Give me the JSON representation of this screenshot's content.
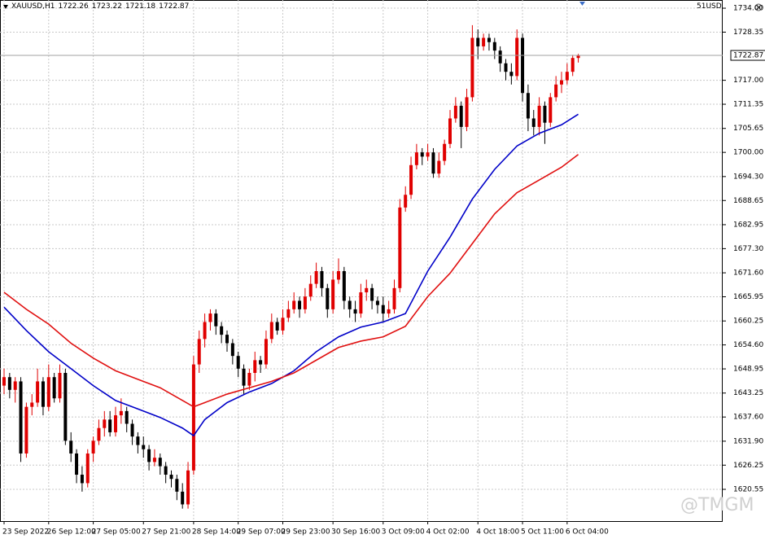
{
  "chart_data": {
    "type": "candlestick",
    "title": "XAUUSD,H1",
    "account": "51USD",
    "watermark": "@TMGM",
    "categories": [
      "23 Sep 2022",
      null,
      null,
      null,
      null,
      null,
      null,
      null,
      "26 Sep 12:00",
      null,
      null,
      null,
      null,
      null,
      null,
      null,
      "27 Sep 05:00",
      null,
      null,
      null,
      null,
      null,
      null,
      null,
      null,
      "27 Sep 21:00",
      null,
      null,
      null,
      null,
      null,
      null,
      null,
      null,
      "28 Sep 14:00",
      null,
      null,
      null,
      null,
      null,
      null,
      null,
      "29 Sep 07:00",
      null,
      null,
      null,
      null,
      null,
      null,
      null,
      "29 Sep 23:00",
      null,
      null,
      null,
      null,
      null,
      null,
      null,
      null,
      "30 Sep 16:00",
      null,
      null,
      null,
      null,
      null,
      null,
      null,
      null,
      "3 Oct 09:00",
      null,
      null,
      null,
      null,
      null,
      null,
      null,
      "4 Oct 02:00",
      null,
      null,
      null,
      null,
      null,
      null,
      null,
      null,
      "4 Oct 18:00",
      null,
      null,
      null,
      null,
      null,
      null,
      null,
      "5 Oct 11:00",
      null,
      null,
      null,
      null,
      null,
      null,
      null,
      "6 Oct 04:00",
      null,
      null
    ],
    "open": [
      1645,
      1647,
      1644,
      1646,
      1629,
      1640,
      1641,
      1646,
      1640,
      1647,
      1642,
      1648,
      1632,
      1629,
      1624,
      1622,
      1629,
      1632,
      1635,
      1637,
      1634,
      1638,
      1639,
      1636,
      1633,
      1631,
      1630,
      1627,
      1628,
      1626,
      1624,
      1623,
      1620,
      1617,
      1625,
      1650,
      1656,
      1660,
      1662,
      1659,
      1657,
      1655,
      1652,
      1649,
      1645,
      1648,
      1651,
      1650,
      1656,
      1660,
      1658,
      1661,
      1663,
      1665,
      1663,
      1666,
      1669,
      1672,
      1668,
      1663,
      1670,
      1672,
      1665,
      1663,
      1662,
      1667,
      1668,
      1665,
      1664,
      1662,
      1663,
      1668,
      1687,
      1690,
      1697,
      1700,
      1699,
      1700,
      1695,
      1698,
      1702,
      1708,
      1711,
      1706,
      1713,
      1727,
      1725,
      1727,
      1726,
      1724,
      1721,
      1719,
      1718,
      1727,
      1714,
      1708,
      1706,
      1711,
      1707,
      1713,
      1716,
      1717,
      1719,
      1722.26
    ],
    "high": [
      1649,
      1648,
      1647,
      1647,
      1641,
      1643,
      1649,
      1647,
      1650,
      1648,
      1650,
      1649,
      1634,
      1630,
      1626,
      1630,
      1633,
      1637,
      1639,
      1639,
      1640,
      1642,
      1640,
      1637,
      1634,
      1633,
      1631,
      1630,
      1629,
      1627,
      1625,
      1624,
      1622,
      1627,
      1652,
      1658,
      1662,
      1663,
      1663,
      1660,
      1658,
      1656,
      1653,
      1650,
      1649,
      1653,
      1652,
      1658,
      1662,
      1661,
      1663,
      1665,
      1667,
      1666,
      1668,
      1671,
      1674,
      1673,
      1669,
      1672,
      1675,
      1673,
      1666,
      1665,
      1669,
      1670,
      1669,
      1666,
      1666,
      1665,
      1670,
      1689,
      1692,
      1699,
      1702,
      1701,
      1702,
      1701,
      1700,
      1703,
      1710,
      1713,
      1712,
      1715,
      1730,
      1729,
      1728,
      1728,
      1727,
      1725,
      1722,
      1721,
      1729,
      1728,
      1716,
      1710,
      1713,
      1712,
      1714,
      1718,
      1719,
      1721,
      1723,
      1723.22
    ],
    "low": [
      1643,
      1642,
      1641,
      1627,
      1628,
      1638,
      1640,
      1638,
      1639,
      1641,
      1641,
      1631,
      1627,
      1622,
      1620,
      1621,
      1627,
      1631,
      1633,
      1633,
      1633,
      1636,
      1634,
      1631,
      1629,
      1628,
      1625,
      1626,
      1624,
      1622,
      1621,
      1618,
      1616,
      1616,
      1624,
      1648,
      1654,
      1658,
      1657,
      1655,
      1653,
      1650,
      1647,
      1643,
      1644,
      1646,
      1648,
      1649,
      1655,
      1657,
      1657,
      1660,
      1662,
      1661,
      1662,
      1665,
      1668,
      1666,
      1661,
      1662,
      1669,
      1663,
      1661,
      1660,
      1661,
      1665,
      1663,
      1662,
      1660,
      1661,
      1662,
      1667,
      1686,
      1689,
      1696,
      1697,
      1698,
      1694,
      1694,
      1697,
      1701,
      1707,
      1701,
      1705,
      1712,
      1722,
      1724,
      1724,
      1722,
      1719,
      1717,
      1716,
      1717,
      1712,
      1705,
      1704,
      1704,
      1702,
      1706,
      1712,
      1714,
      1716,
      1718,
      1721.18
    ],
    "close": [
      1647,
      1644,
      1646,
      1629,
      1640,
      1641,
      1646,
      1640,
      1647,
      1642,
      1648,
      1632,
      1629,
      1624,
      1622,
      1629,
      1632,
      1635,
      1637,
      1634,
      1638,
      1639,
      1636,
      1633,
      1631,
      1630,
      1627,
      1628,
      1626,
      1624,
      1623,
      1620,
      1617,
      1625,
      1650,
      1656,
      1660,
      1662,
      1659,
      1657,
      1655,
      1652,
      1649,
      1645,
      1648,
      1651,
      1650,
      1656,
      1660,
      1658,
      1661,
      1663,
      1665,
      1663,
      1666,
      1669,
      1672,
      1668,
      1663,
      1670,
      1672,
      1665,
      1663,
      1662,
      1667,
      1668,
      1665,
      1664,
      1662,
      1663,
      1668,
      1687,
      1690,
      1697,
      1700,
      1699,
      1700,
      1695,
      1698,
      1702,
      1708,
      1711,
      1706,
      1713,
      1727,
      1725,
      1727,
      1726,
      1724,
      1721,
      1719,
      1718,
      1727,
      1714,
      1708,
      1706,
      1711,
      1707,
      1713,
      1716,
      1717,
      1719,
      1722.26,
      1722.87
    ],
    "up_color": "#e00000",
    "down_color": "#000000",
    "ma": [
      {
        "color": "#0000c8",
        "x": [
          0,
          4,
          8,
          12,
          16,
          20,
          24,
          28,
          32,
          34,
          36,
          40,
          44,
          48,
          52,
          56,
          60,
          64,
          68,
          72,
          76,
          80,
          84,
          88,
          92,
          96,
          100,
          103
        ],
        "values": [
          1663.5,
          1658,
          1653,
          1649,
          1645,
          1641.5,
          1639.5,
          1637.5,
          1635,
          1633.2,
          1637,
          1641,
          1643.5,
          1645.5,
          1648.5,
          1653,
          1656.5,
          1658.8,
          1660,
          1662,
          1672,
          1680,
          1689,
          1696,
          1701.5,
          1704.5,
          1706.5,
          1709
        ]
      },
      {
        "color": "#e01010",
        "x": [
          0,
          4,
          8,
          12,
          16,
          20,
          24,
          28,
          32,
          34,
          36,
          40,
          44,
          48,
          52,
          56,
          60,
          64,
          68,
          72,
          76,
          80,
          84,
          88,
          92,
          96,
          100,
          103
        ],
        "values": [
          1667,
          1663,
          1659.5,
          1655,
          1651.5,
          1648.5,
          1646.5,
          1644.5,
          1641.5,
          1640,
          1641,
          1643,
          1644.5,
          1646,
          1648,
          1651,
          1654,
          1655.5,
          1656.5,
          1659,
          1666,
          1671.5,
          1678.5,
          1685.5,
          1690.5,
          1693.5,
          1696.5,
          1699.5
        ]
      }
    ],
    "ylim": [
      1613.06,
      1735.93
    ],
    "yticks": [
      {
        "value": 1734,
        "label": "1734.00"
      },
      1728.35,
      {
        "value": 1717,
        "label": "1717.00"
      },
      1711.35,
      1705.65,
      {
        "value": 1700,
        "label": "1700.00"
      },
      {
        "value": 1694.3,
        "label": "1694.30"
      },
      1688.65,
      1682.95,
      {
        "value": 1677.3,
        "label": "1677.30"
      },
      {
        "value": 1671.6,
        "label": "1671.60"
      },
      1665.95,
      1660.25,
      {
        "value": 1654.6,
        "label": "1654.60"
      },
      1648.95,
      1643.25,
      {
        "value": 1637.6,
        "label": "1637.60"
      },
      {
        "value": 1631.9,
        "label": "1631.90"
      },
      1626.25,
      1620.55
    ],
    "grid": true
  }
}
